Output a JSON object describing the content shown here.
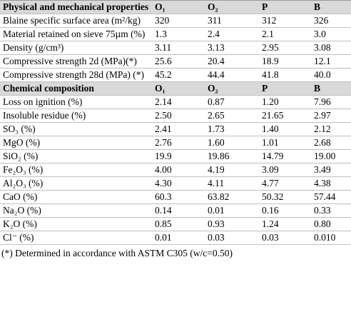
{
  "table": {
    "header": [
      "Physical and mechanical properties",
      "O₁",
      "O₂",
      "P",
      "B"
    ],
    "physical_rows": [
      [
        "Blaine specific surface area (m²/kg)",
        "320",
        "311",
        "312",
        "326"
      ],
      [
        "Material retained on sieve 75µm (%)",
        "1.3",
        "2.4",
        "2.1",
        "3.0"
      ],
      [
        "Density (g/cm³)",
        "3.11",
        "3.13",
        "2.95",
        "3.08"
      ],
      [
        "Compressive strength 2d (MPa)(*)",
        "25.6",
        "20.4",
        "18.9",
        "12.1"
      ],
      [
        "Compressive strength 28d (MPa) (*)",
        "45.2",
        "44.4",
        "41.8",
        "40.0"
      ]
    ],
    "chemical_header": [
      "Chemical composition",
      "O₁",
      "O₂",
      "P",
      "B"
    ],
    "chemical_rows": [
      [
        "Loss on ignition (%)",
        "2.14",
        "0.87",
        "1.20",
        "7.96"
      ],
      [
        "Insoluble residue (%)",
        "2.50",
        "2.65",
        "21.65",
        "2.97"
      ],
      [
        "SO₃ (%)",
        "2.41",
        "1.73",
        "1.40",
        "2.12"
      ],
      [
        "MgO (%)",
        "2.76",
        "1.60",
        "1.01",
        "2.68"
      ],
      [
        "SiO₂ (%)",
        "19.9",
        "19.86",
        "14.79",
        "19.00"
      ],
      [
        "Fe₂O₃ (%)",
        "4.00",
        "4.19",
        "3.09",
        "3.49"
      ],
      [
        "Al₂O₃ (%)",
        "4.30",
        "4.11",
        "4.77",
        "4.38"
      ],
      [
        "CaO (%)",
        "60.3",
        "63.82",
        "50.32",
        "57.44"
      ],
      [
        "Na₂O (%)",
        "0.14",
        "0.01",
        "0.16",
        "0.33"
      ],
      [
        "K₂O (%)",
        "0.85",
        "0.93",
        "1.24",
        "0.80"
      ],
      [
        "Cl⁻ (%)",
        "0.01",
        "0.03",
        "0.03",
        "0.010"
      ]
    ]
  },
  "footnote": "(*) Determined in accordance with ASTM C305 (w/c=0.50)"
}
